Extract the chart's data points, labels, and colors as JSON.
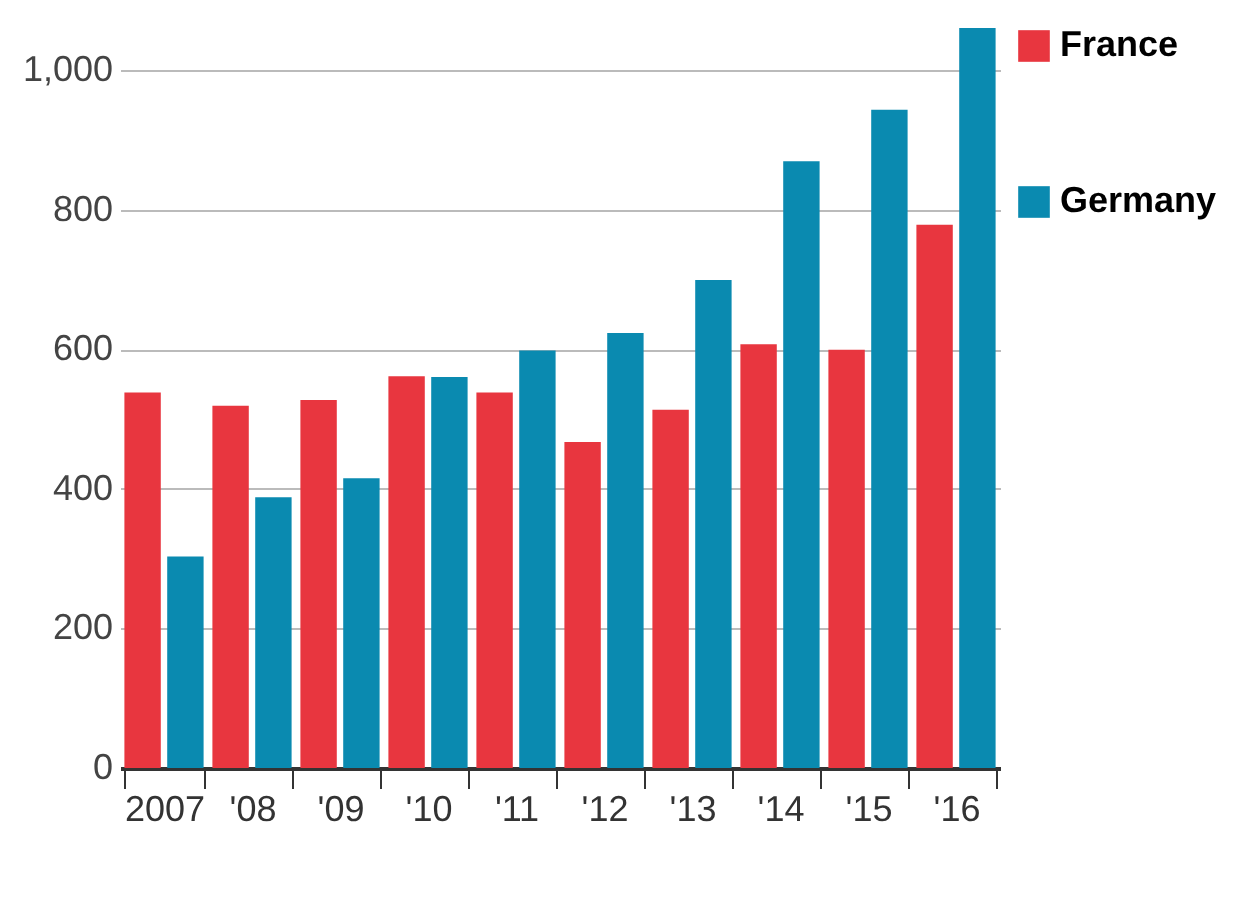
{
  "chart_data": {
    "type": "bar",
    "categories": [
      "2007",
      "'08",
      "'09",
      "'10",
      "'11",
      "'12",
      "'13",
      "'14",
      "'15",
      "'16"
    ],
    "series": [
      {
        "name": "France",
        "color": "#e8363f",
        "values": [
          538,
          519,
          527,
          561,
          538,
          467,
          513,
          607,
          599,
          778
        ]
      },
      {
        "name": "Germany",
        "color": "#0a8ab0",
        "values": [
          303,
          388,
          415,
          560,
          598,
          623,
          699,
          869,
          943,
          1060
        ]
      }
    ],
    "ylim": [
      0,
      1060
    ],
    "yticks": [
      0,
      200,
      400,
      600,
      800,
      {
        "value": 1000,
        "label": "1,000"
      }
    ],
    "grid": "y",
    "legend": "top right"
  }
}
